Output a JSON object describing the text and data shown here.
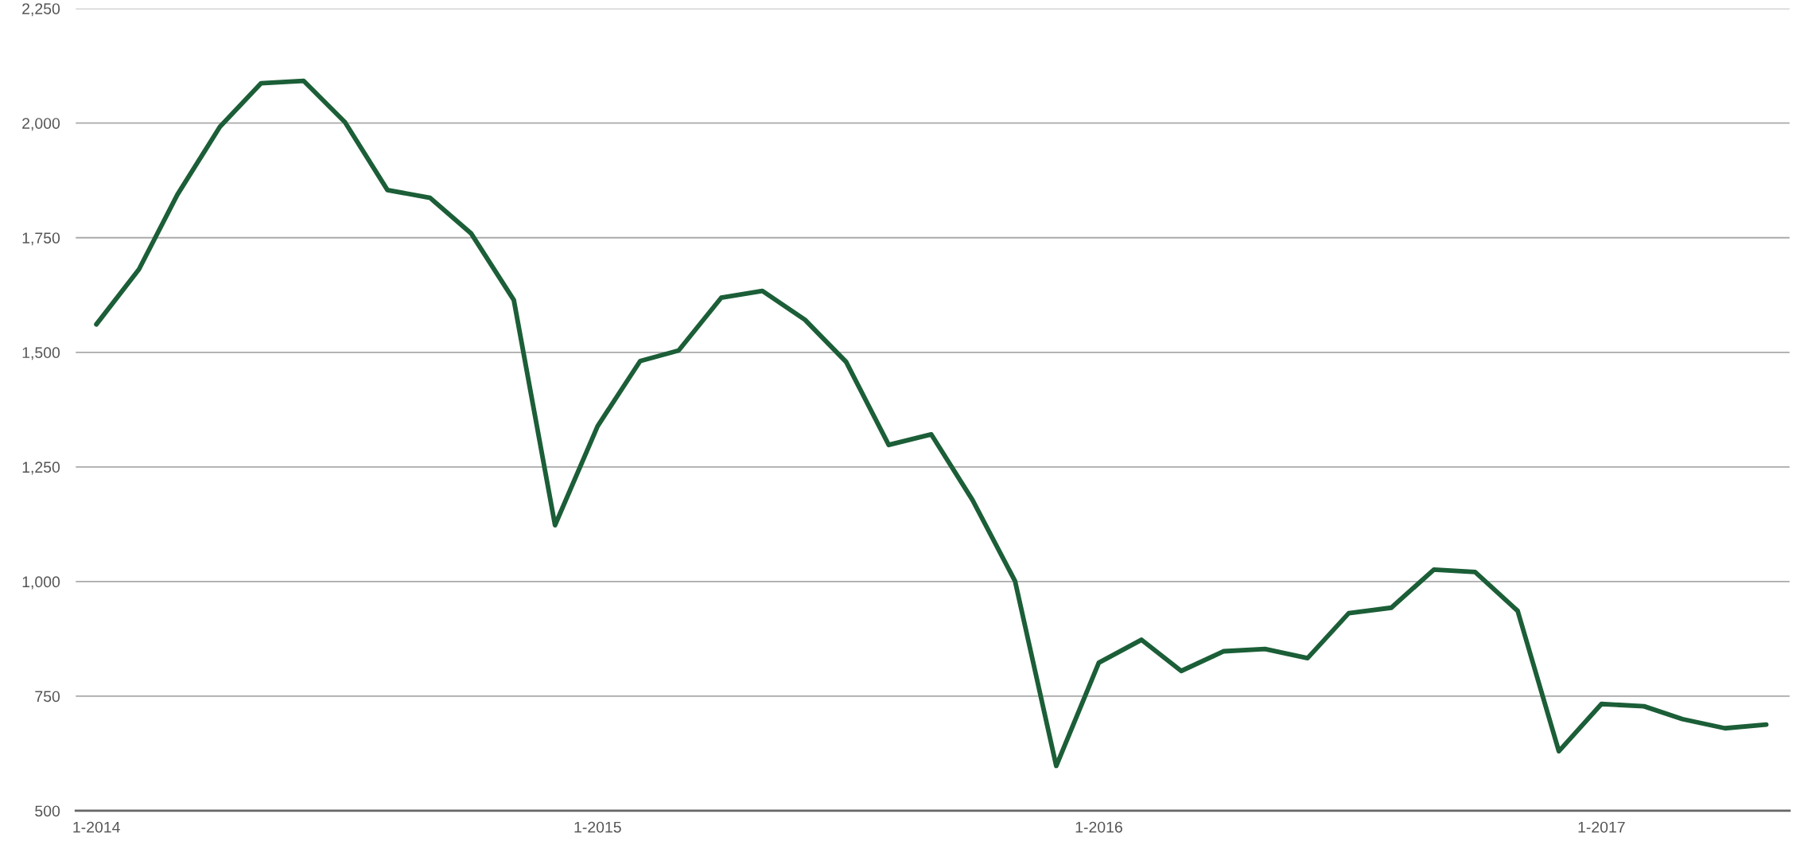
{
  "chart_data": {
    "type": "line",
    "x": [
      "2014-01",
      "2014-02",
      "2014-03",
      "2014-04",
      "2014-05",
      "2014-06",
      "2014-07",
      "2014-08",
      "2014-09",
      "2014-10",
      "2014-11",
      "2014-12",
      "2015-01",
      "2015-02",
      "2015-03",
      "2015-04",
      "2015-05",
      "2015-06",
      "2015-07",
      "2015-08",
      "2015-09",
      "2015-10",
      "2015-11",
      "2015-12",
      "2016-01",
      "2016-02",
      "2016-03",
      "2016-04",
      "2016-05",
      "2016-06",
      "2016-07",
      "2016-08",
      "2016-09",
      "2016-10",
      "2016-11",
      "2016-12",
      "2017-01",
      "2017-02",
      "2017-03",
      "2017-04",
      "2017-05"
    ],
    "series": [
      {
        "color": "#1b5e37",
        "values": [
          1561,
          1681,
          1844,
          1992,
          2087,
          2092,
          2002,
          1854,
          1837,
          1759,
          1614,
          1123,
          1339,
          1481,
          1504,
          1619,
          1634,
          1571,
          1479,
          1298,
          1321,
          1178,
          1001,
          598,
          823,
          873,
          805,
          848,
          853,
          833,
          931,
          943,
          1026,
          1021,
          936,
          630,
          733,
          728,
          700,
          680,
          688
        ]
      }
    ],
    "xlim": [
      "2013-12-17",
      "2017-05-18"
    ],
    "xticks": [
      {
        "value": "2014-01",
        "label": "1-2014"
      },
      {
        "value": "2015-01",
        "label": "1-2015"
      },
      {
        "value": "2016-01",
        "label": "1-2016"
      },
      {
        "value": "2017-01",
        "label": "1-2017"
      }
    ],
    "ylim": [
      500,
      2250
    ],
    "yticks": [
      500,
      750,
      {
        "value": 1000,
        "label": "1,000"
      },
      {
        "value": 1250,
        "label": "1,250"
      },
      {
        "value": 1500,
        "label": "1,500"
      },
      {
        "value": 1750,
        "label": "1,750"
      },
      {
        "value": 2000,
        "label": "2,000"
      },
      {
        "value": 2250,
        "label": "2,250"
      }
    ],
    "grid": "y",
    "marker": "none",
    "line_style": "solid",
    "legend": false
  }
}
